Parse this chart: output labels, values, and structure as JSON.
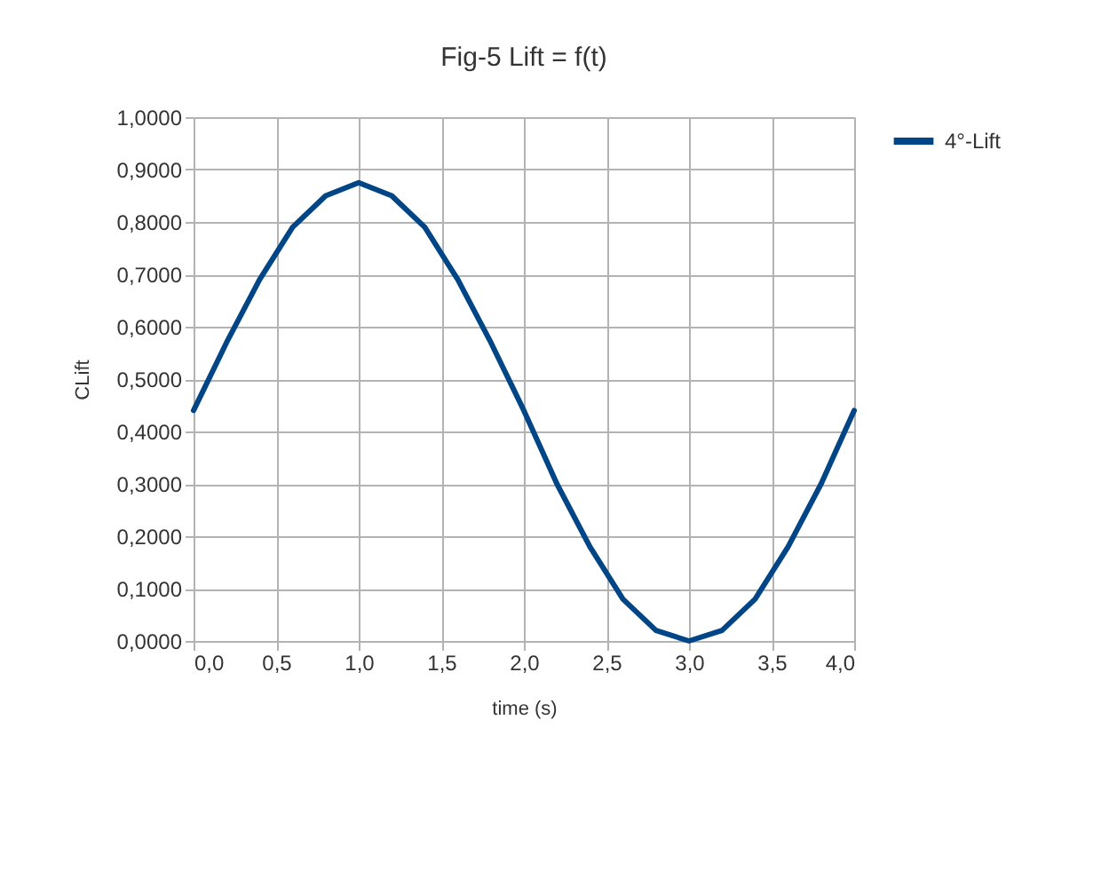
{
  "chart_data": {
    "type": "line",
    "title": "Fig-5 Lift = f(t)",
    "xlabel": "time (s)",
    "ylabel": "CLift",
    "x": [
      0,
      0.2,
      0.4,
      0.6,
      0.8,
      1.0,
      1.2,
      1.4,
      1.6,
      1.8,
      2.0,
      2.2,
      2.4,
      2.6,
      2.8,
      3.0,
      3.2,
      3.4,
      3.6,
      3.8,
      4.0
    ],
    "series": [
      {
        "name": "4°-Lift",
        "color": "#004586",
        "values": [
          0.44,
          0.57,
          0.69,
          0.79,
          0.85,
          0.875,
          0.85,
          0.79,
          0.69,
          0.57,
          0.44,
          0.3,
          0.18,
          0.08,
          0.02,
          0.0,
          0.02,
          0.08,
          0.18,
          0.3,
          0.44
        ]
      }
    ],
    "xlim": [
      0,
      4
    ],
    "ylim": [
      0,
      1
    ],
    "xticks": [
      {
        "value": 0,
        "label": "0,0"
      },
      {
        "value": 0.5,
        "label": "0,5"
      },
      {
        "value": 1,
        "label": "1,0"
      },
      {
        "value": 1.5,
        "label": "1,5"
      },
      {
        "value": 2,
        "label": "2,0"
      },
      {
        "value": 2.5,
        "label": "2,5"
      },
      {
        "value": 3,
        "label": "3,0"
      },
      {
        "value": 3.5,
        "label": "3,5"
      },
      {
        "value": 4,
        "label": "4,0"
      }
    ],
    "yticks": [
      {
        "value": 0,
        "label": "0,0000"
      },
      {
        "value": 0.1,
        "label": "0,1000"
      },
      {
        "value": 0.2,
        "label": "0,2000"
      },
      {
        "value": 0.3,
        "label": "0,3000"
      },
      {
        "value": 0.4,
        "label": "0,4000"
      },
      {
        "value": 0.5,
        "label": "0,5000"
      },
      {
        "value": 0.6,
        "label": "0,6000"
      },
      {
        "value": 0.7,
        "label": "0,7000"
      },
      {
        "value": 0.8,
        "label": "0,8000"
      },
      {
        "value": 0.9,
        "label": "0,9000"
      },
      {
        "value": 1,
        "label": "1,0000"
      }
    ],
    "grid": true,
    "legend": "right",
    "marker": "none",
    "line_style": "solid"
  }
}
